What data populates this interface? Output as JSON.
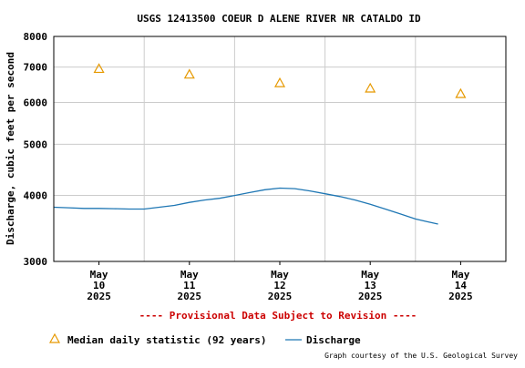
{
  "chart_data": {
    "type": "line",
    "title": "USGS 12413500 COEUR D ALENE RIVER NR CATALDO ID",
    "ylabel": "Discharge, cubic feet per second",
    "xlabel": "",
    "y_scale": "log",
    "ylim": [
      3000,
      8000
    ],
    "y_ticks": [
      3000,
      4000,
      5000,
      6000,
      7000,
      8000
    ],
    "x_range": [
      "2025-05-10T00:00",
      "2025-05-15T00:00"
    ],
    "x_ticks": [
      {
        "x": "2025-05-10T12:00",
        "label_month": "May",
        "label_day": "10",
        "label_year": "2025"
      },
      {
        "x": "2025-05-11T12:00",
        "label_month": "May",
        "label_day": "11",
        "label_year": "2025"
      },
      {
        "x": "2025-05-12T12:00",
        "label_month": "May",
        "label_day": "12",
        "label_year": "2025"
      },
      {
        "x": "2025-05-13T12:00",
        "label_month": "May",
        "label_day": "13",
        "label_year": "2025"
      },
      {
        "x": "2025-05-14T12:00",
        "label_month": "May",
        "label_day": "14",
        "label_year": "2025"
      }
    ],
    "x_gridlines": [
      "2025-05-11T00:00",
      "2025-05-12T00:00",
      "2025-05-13T00:00",
      "2025-05-14T00:00"
    ],
    "grid": true,
    "series": [
      {
        "name": "Discharge",
        "kind": "line",
        "color": "#1f77b4",
        "points": [
          [
            "2025-05-10T00:00",
            3800
          ],
          [
            "2025-05-10T04:00",
            3790
          ],
          [
            "2025-05-10T08:00",
            3780
          ],
          [
            "2025-05-10T12:00",
            3780
          ],
          [
            "2025-05-10T16:00",
            3775
          ],
          [
            "2025-05-10T20:00",
            3770
          ],
          [
            "2025-05-11T00:00",
            3770
          ],
          [
            "2025-05-11T04:00",
            3800
          ],
          [
            "2025-05-11T08:00",
            3830
          ],
          [
            "2025-05-11T12:00",
            3880
          ],
          [
            "2025-05-11T16:00",
            3920
          ],
          [
            "2025-05-11T20:00",
            3950
          ],
          [
            "2025-05-12T00:00",
            4000
          ],
          [
            "2025-05-12T04:00",
            4050
          ],
          [
            "2025-05-12T08:00",
            4100
          ],
          [
            "2025-05-12T12:00",
            4130
          ],
          [
            "2025-05-12T16:00",
            4120
          ],
          [
            "2025-05-12T20:00",
            4080
          ],
          [
            "2025-05-13T00:00",
            4030
          ],
          [
            "2025-05-13T04:00",
            3980
          ],
          [
            "2025-05-13T08:00",
            3920
          ],
          [
            "2025-05-13T12:00",
            3850
          ],
          [
            "2025-05-13T16:00",
            3770
          ],
          [
            "2025-05-13T20:00",
            3690
          ],
          [
            "2025-05-14T00:00",
            3610
          ],
          [
            "2025-05-14T03:00",
            3570
          ],
          [
            "2025-05-14T06:00",
            3530
          ]
        ]
      },
      {
        "name": "Median daily statistic (92 years)",
        "kind": "marker",
        "marker": "triangle",
        "color": "#e69900",
        "points": [
          [
            "2025-05-10T12:00",
            6950
          ],
          [
            "2025-05-11T12:00",
            6780
          ],
          [
            "2025-05-12T12:00",
            6530
          ],
          [
            "2025-05-13T12:00",
            6380
          ],
          [
            "2025-05-14T12:00",
            6230
          ]
        ]
      }
    ],
    "notice": "---- Provisional Data Subject to Revision ----",
    "legend_position": "bottom",
    "legend": [
      {
        "label": "Median daily statistic (92 years)",
        "symbol": "triangle"
      },
      {
        "label": "Discharge",
        "symbol": "line"
      }
    ],
    "credit": "Graph courtesy of the U.S. Geological Survey",
    "colors": {
      "grid": "#cccccc",
      "axis": "#000000",
      "notice": "#cc0000",
      "discharge": "#1f77b4",
      "median": "#e69900"
    }
  }
}
